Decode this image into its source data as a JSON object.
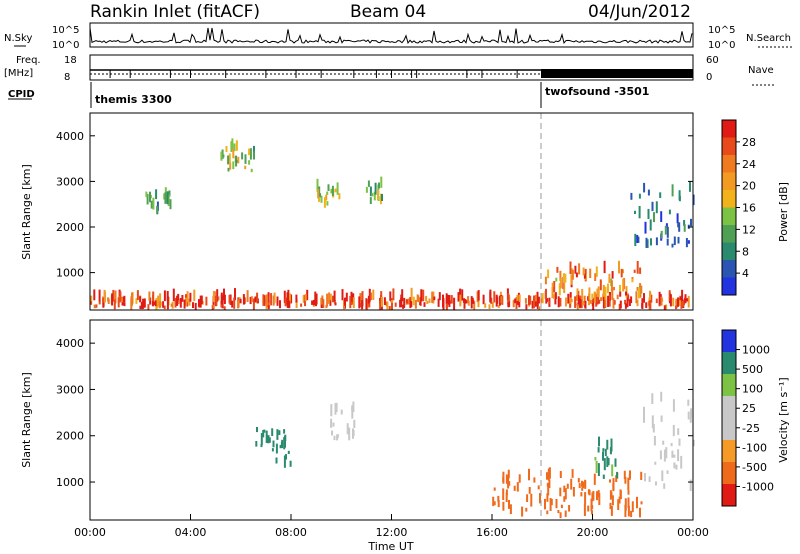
{
  "header": {
    "station": "Rankin Inlet (fitACF)",
    "beam": "Beam 04",
    "date": "04/Jun/2012"
  },
  "strip_labels": {
    "nsky": "N.Sky",
    "nsearch": "N.Search",
    "freq": "Freq.",
    "mhz": "[MHz]",
    "nave": "Nave",
    "cpid": "CPID"
  },
  "noise_ticks_left": [
    "10^5",
    "10^0"
  ],
  "noise_ticks_right": [
    "10^5",
    "10^0"
  ],
  "freq_ticks": [
    "18",
    "8"
  ],
  "nave_ticks": [
    "60",
    "0"
  ],
  "cpid_labels": [
    "themis 3300",
    "twofsound -3501"
  ],
  "colors": {
    "power": [
      "#2233e0",
      "#2a55b0",
      "#2a8a6e",
      "#4fa055",
      "#7cc244",
      "#f2b21a",
      "#f39a22",
      "#f07a20",
      "#e84a1c",
      "#e01a14"
    ],
    "velocity": [
      "#e01a14",
      "#f06a1c",
      "#f59a26",
      "#c8c8c8",
      "#c8c8c8",
      "#7cc244",
      "#2a8a6e",
      "#2233e0"
    ]
  },
  "chart_data": [
    {
      "type": "heatmap",
      "title": "",
      "xlabel": "",
      "ylabel": "Slant Range [km]",
      "colorbar_label": "Power [dB]",
      "colorbar_ticks": [
        "28",
        "24",
        "20",
        "16",
        "12",
        "8",
        "4"
      ],
      "x_ticks": [],
      "y_ticks": [
        "4000",
        "3000",
        "2000",
        "1000"
      ],
      "xlim": [
        0,
        24
      ],
      "ylim": [
        180,
        4500
      ],
      "regions": [
        {
          "t": [
            0.0,
            24.0
          ],
          "r": [
            180,
            400
          ],
          "v": 26
        },
        {
          "t": [
            2.2,
            3.2
          ],
          "r": [
            2200,
            2700
          ],
          "v": 10
        },
        {
          "t": [
            5.0,
            6.5
          ],
          "r": [
            3200,
            3700
          ],
          "v": 14
        },
        {
          "t": [
            9.0,
            10.0
          ],
          "r": [
            2400,
            2800
          ],
          "v": 16
        },
        {
          "t": [
            10.8,
            11.6
          ],
          "r": [
            2500,
            2900
          ],
          "v": 12
        },
        {
          "t": [
            18.0,
            22.0
          ],
          "r": [
            400,
            1000
          ],
          "v": 22
        },
        {
          "t": [
            21.5,
            24.0
          ],
          "r": [
            1500,
            2800
          ],
          "v": 6
        }
      ]
    },
    {
      "type": "heatmap",
      "title": "",
      "xlabel": "Time UT",
      "ylabel": "Slant Range [km]",
      "colorbar_label": "Velocity [m s⁻¹]",
      "colorbar_ticks": [
        "1000",
        "500",
        "100",
        "25",
        "-25",
        "-100",
        "-500",
        "-1000"
      ],
      "x_ticks": [
        "00:00",
        "04:00",
        "08:00",
        "12:00",
        "16:00",
        "20:00",
        "00:00"
      ],
      "y_ticks": [
        "4000",
        "3000",
        "2000",
        "1000"
      ],
      "xlim": [
        0,
        24
      ],
      "ylim": [
        180,
        4500
      ],
      "regions": [
        {
          "t": [
            6.5,
            8.0
          ],
          "r": [
            1300,
            2100
          ],
          "v": 800
        },
        {
          "t": [
            9.5,
            10.5
          ],
          "r": [
            1900,
            2600
          ],
          "v": 0
        },
        {
          "t": [
            16.0,
            22.0
          ],
          "r": [
            200,
            1100
          ],
          "v": -200
        },
        {
          "t": [
            20.0,
            21.0
          ],
          "r": [
            1000,
            1800
          ],
          "v": 600
        },
        {
          "t": [
            22.0,
            24.0
          ],
          "r": [
            800,
            2800
          ],
          "v": 0
        }
      ]
    }
  ]
}
